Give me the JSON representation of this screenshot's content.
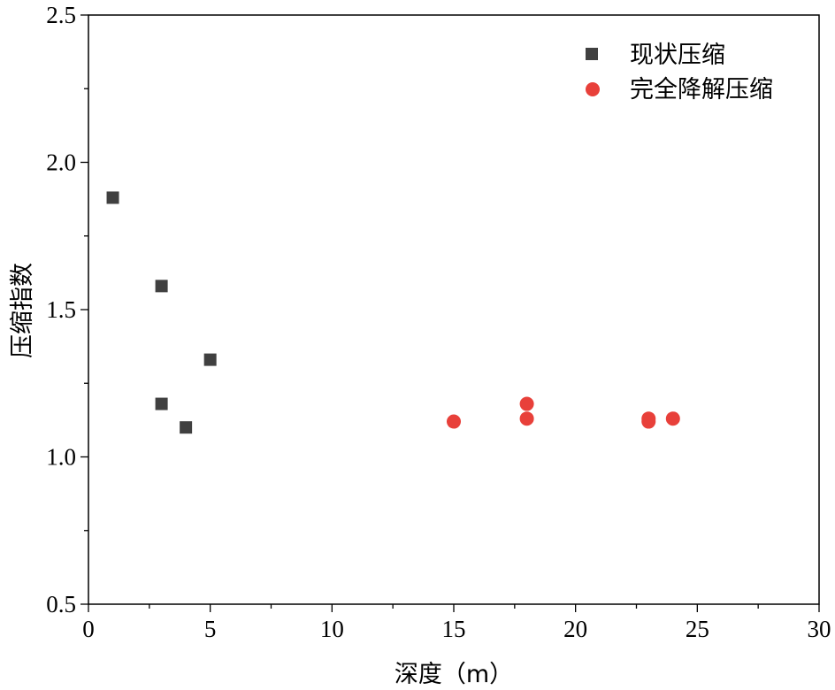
{
  "chart_data": {
    "type": "scatter",
    "title": "",
    "xlabel": "深度（m）",
    "ylabel": "压缩指数",
    "xlim": [
      0,
      30
    ],
    "ylim": [
      0.5,
      2.5
    ],
    "x_ticks": [
      "0",
      "5",
      "10",
      "15",
      "20",
      "25",
      "30"
    ],
    "y_ticks": [
      "0.5",
      "1.0",
      "1.5",
      "2.0",
      "2.5"
    ],
    "grid": false,
    "legend_position": "top-right",
    "series": [
      {
        "name": "现状压缩",
        "marker": "square",
        "color": "#404040",
        "points": [
          {
            "x": 1,
            "y": 1.88
          },
          {
            "x": 3,
            "y": 1.58
          },
          {
            "x": 3,
            "y": 1.18
          },
          {
            "x": 4,
            "y": 1.1
          },
          {
            "x": 5,
            "y": 1.33
          }
        ]
      },
      {
        "name": "完全降解压缩",
        "marker": "circle",
        "color": "#e8403a",
        "points": [
          {
            "x": 15,
            "y": 1.12
          },
          {
            "x": 18,
            "y": 1.18
          },
          {
            "x": 18,
            "y": 1.13
          },
          {
            "x": 23,
            "y": 1.13
          },
          {
            "x": 23,
            "y": 1.12
          },
          {
            "x": 24,
            "y": 1.13
          }
        ]
      }
    ]
  }
}
